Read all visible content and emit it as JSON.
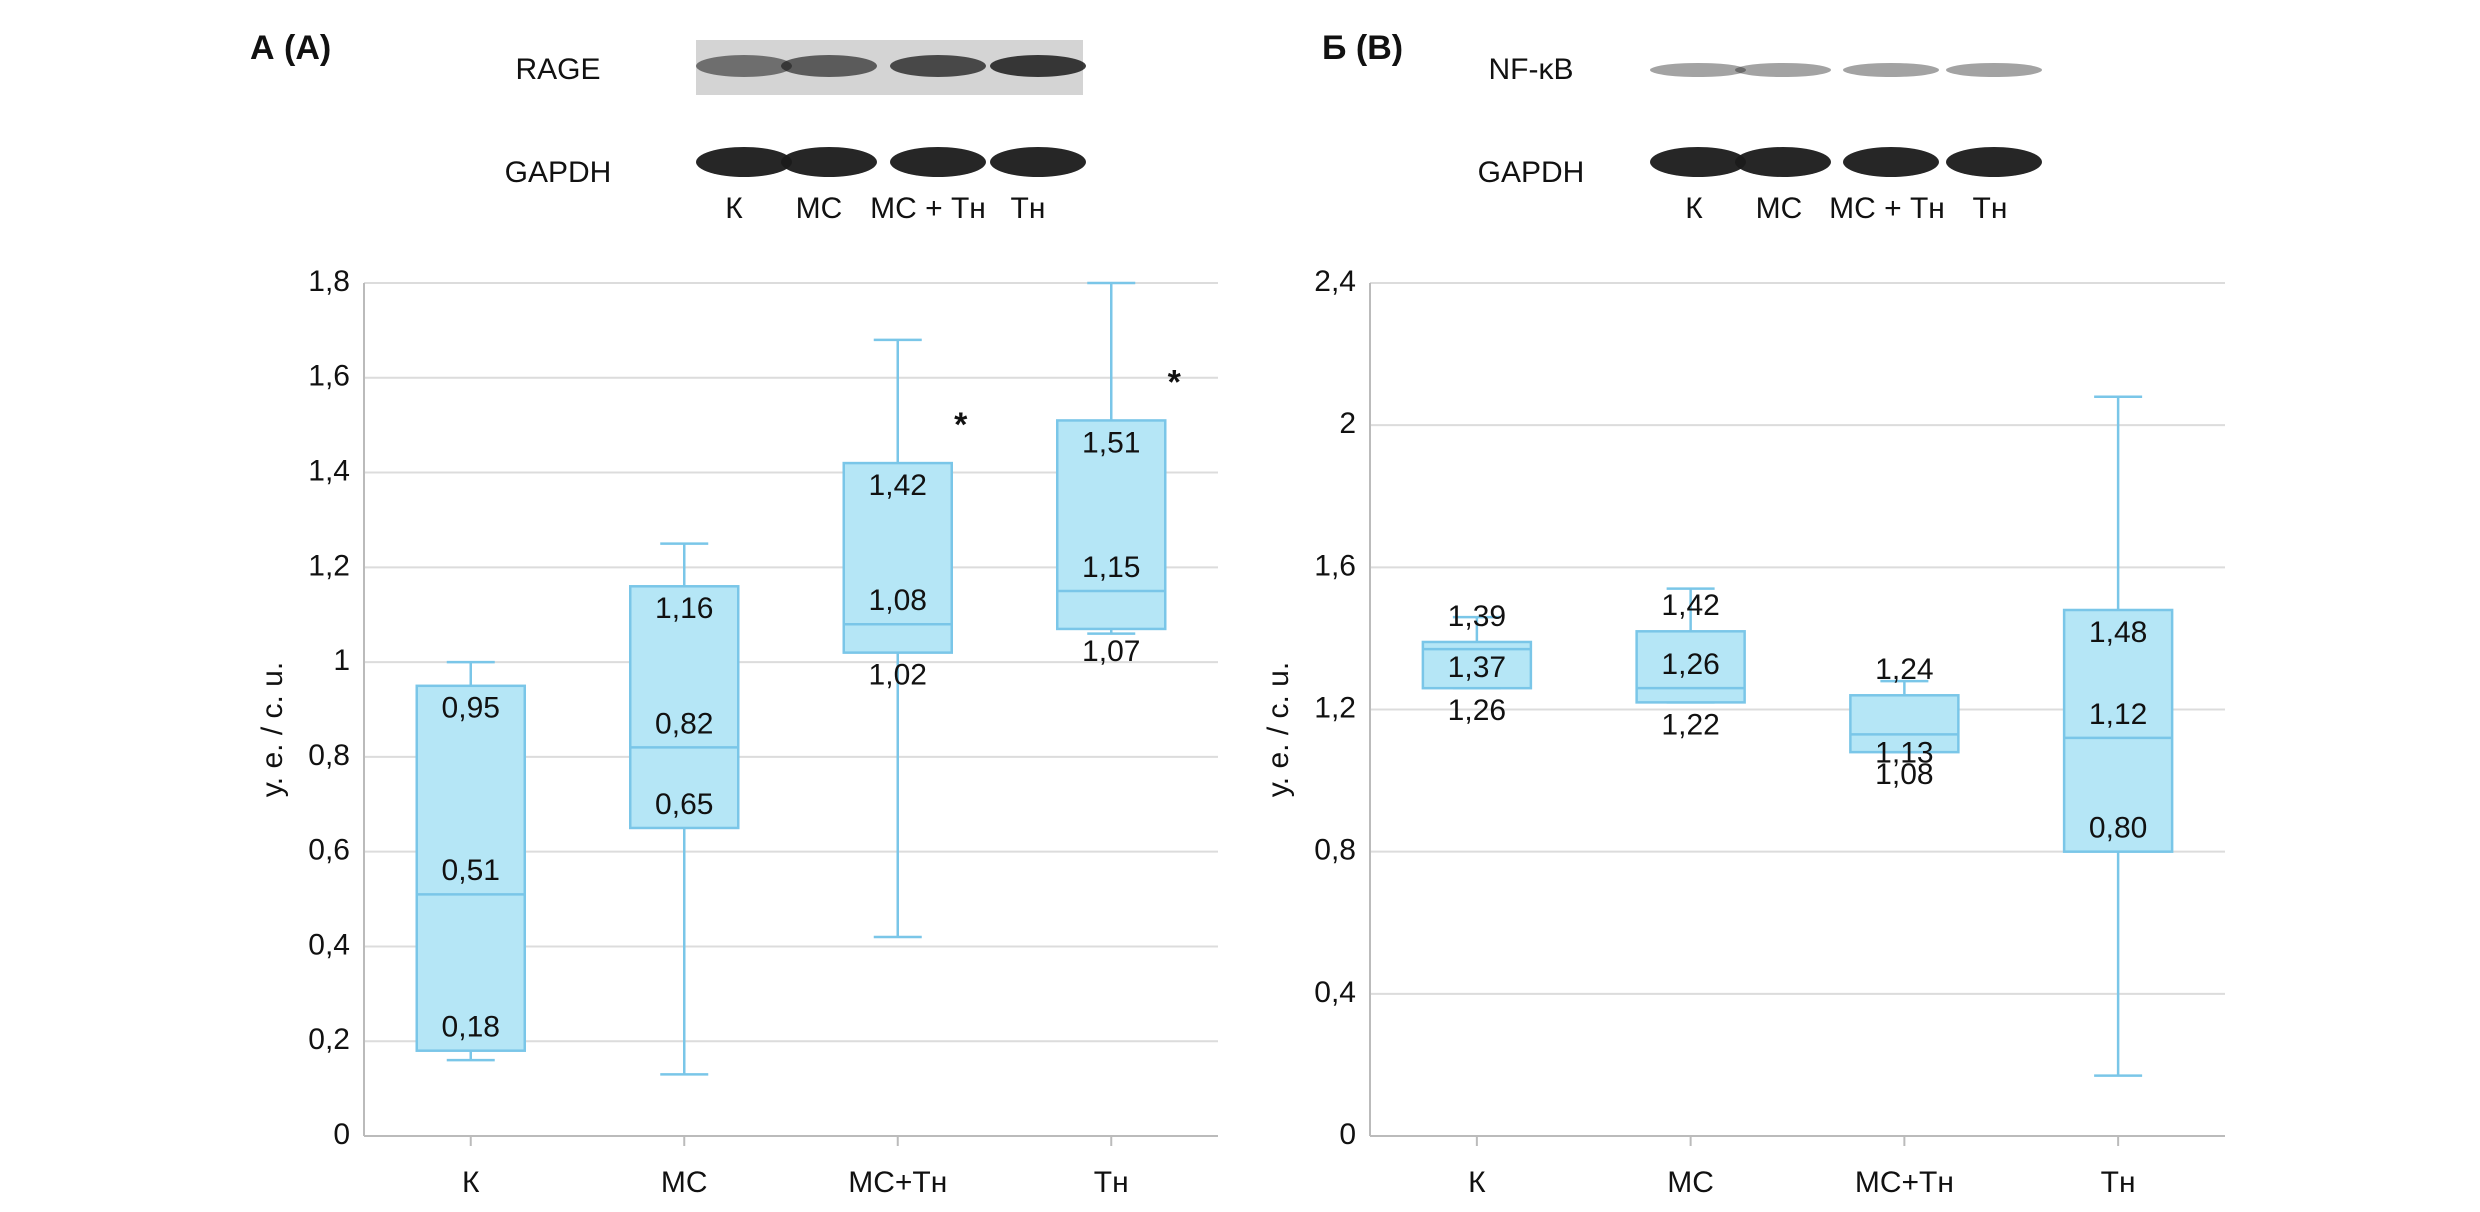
{
  "chart_data": [
    {
      "type": "box",
      "panel_label": "А (A)",
      "blot": {
        "rows": [
          "RAGE",
          "GAPDH"
        ],
        "lanes": [
          "К",
          "МС",
          "МС + Тн",
          "Тн"
        ]
      },
      "y_label": "у. е. / c. u.",
      "categories": [
        "К",
        "МС",
        "МС+Тн",
        "Тн"
      ],
      "series": [
        {
          "color": "#b5e6f6",
          "edge_color": "#7ac6e8",
          "whisker_low": [
            0.16,
            0.13,
            0.42,
            1.06
          ],
          "q1": [
            0.18,
            0.65,
            1.02,
            1.07
          ],
          "median": [
            0.51,
            0.82,
            1.08,
            1.15
          ],
          "q3": [
            0.95,
            1.16,
            1.42,
            1.51
          ],
          "whisker_high": [
            1.0,
            1.25,
            1.68,
            1.8
          ],
          "value_labels": {
            "q1": [
              "0,18",
              "0,65",
              "1,02",
              "1,07"
            ],
            "median": [
              "0,51",
              "0,82",
              "1,08",
              "1,15"
            ],
            "q3": [
              "0,95",
              "1,16",
              "1,42",
              "1,51"
            ]
          }
        }
      ],
      "ylim": [
        0,
        1.8
      ],
      "yticks": [
        0,
        {
          "value": 0.2,
          "label": "0,2"
        },
        {
          "value": 0.4,
          "label": "0,4"
        },
        {
          "value": 0.6,
          "label": "0,6"
        },
        {
          "value": 0.8,
          "label": "0,8"
        },
        1,
        {
          "value": 1.2,
          "label": "1,2"
        },
        {
          "value": 1.4,
          "label": "1,4"
        },
        {
          "value": 1.6,
          "label": "1,6"
        },
        {
          "value": 1.8,
          "label": "1,8"
        }
      ],
      "grid": true,
      "annotations": [
        {
          "text": "*",
          "category_index": 2
        },
        {
          "text": "*",
          "category_index": 3
        }
      ]
    },
    {
      "type": "box",
      "panel_label": "Б (B)",
      "blot": {
        "rows": [
          "NF-κB",
          "GAPDH"
        ],
        "lanes": [
          "К",
          "МС",
          "МС + Тн",
          "Тн"
        ]
      },
      "y_label": "у. е. / c. u.",
      "categories": [
        "К",
        "МС",
        "МС+Тн",
        "Тн"
      ],
      "series": [
        {
          "color": "#b5e6f6",
          "edge_color": "#7ac6e8",
          "whisker_low": [
            1.26,
            1.22,
            1.08,
            0.17
          ],
          "q1": [
            1.26,
            1.22,
            1.08,
            0.8
          ],
          "median": [
            1.37,
            1.26,
            1.13,
            1.12
          ],
          "q3": [
            1.39,
            1.42,
            1.24,
            1.48
          ],
          "whisker_high": [
            1.46,
            1.54,
            1.28,
            2.08
          ],
          "value_labels": {
            "q1": [
              "1,26",
              "1,22",
              "1,08",
              "0,80"
            ],
            "median": [
              "1,37",
              "1,26",
              "1,13",
              "1,12"
            ],
            "q3": [
              "1,39",
              "1,42",
              "1,24",
              "1,48"
            ]
          }
        }
      ],
      "ylim": [
        0,
        2.4
      ],
      "yticks": [
        0,
        {
          "value": 0.4,
          "label": "0,4"
        },
        {
          "value": 0.8,
          "label": "0,8"
        },
        {
          "value": 1.2,
          "label": "1,2"
        },
        {
          "value": 1.6,
          "label": "1,6"
        },
        2,
        {
          "value": 2.4,
          "label": "2,4"
        }
      ],
      "grid": true,
      "annotations": []
    }
  ]
}
